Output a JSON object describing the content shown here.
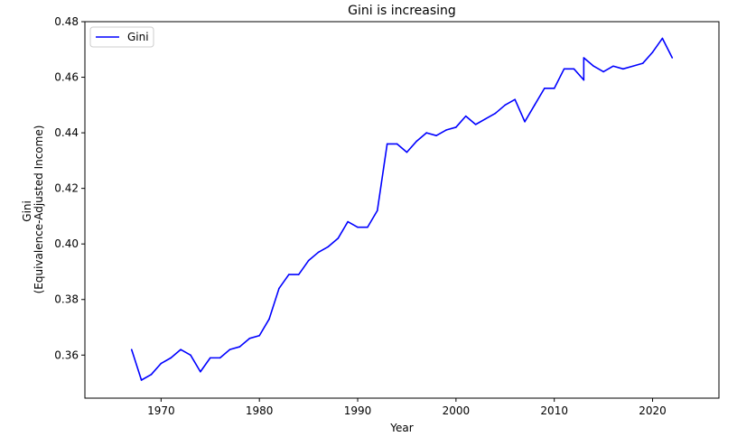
{
  "chart_data": {
    "type": "line",
    "title": "Gini is increasing",
    "xlabel": "Year",
    "ylabel_lines": [
      "Gini",
      "(Equivalence-Adjusted Income)"
    ],
    "xlim": [
      1962.25,
      2026.75
    ],
    "ylim": [
      0.3445,
      0.48
    ],
    "x_ticks": [
      1970,
      1980,
      1990,
      2000,
      2010,
      2020
    ],
    "y_ticks": [
      0.36,
      0.38,
      0.4,
      0.42,
      0.44,
      0.46,
      0.48
    ],
    "y_tick_labels": [
      "0.36",
      "0.38",
      "0.40",
      "0.42",
      "0.44",
      "0.46",
      "0.48"
    ],
    "grid": false,
    "legend_position": "upper left",
    "series": [
      {
        "name": "Gini",
        "color": "#0000ff",
        "points": [
          [
            1967,
            0.362
          ],
          [
            1968,
            0.351
          ],
          [
            1969,
            0.353
          ],
          [
            1970,
            0.357
          ],
          [
            1971,
            0.359
          ],
          [
            1972,
            0.362
          ],
          [
            1973,
            0.36
          ],
          [
            1974,
            0.354
          ],
          [
            1975,
            0.359
          ],
          [
            1976,
            0.359
          ],
          [
            1977,
            0.362
          ],
          [
            1978,
            0.363
          ],
          [
            1979,
            0.366
          ],
          [
            1980,
            0.367
          ],
          [
            1981,
            0.373
          ],
          [
            1982,
            0.384
          ],
          [
            1983,
            0.389
          ],
          [
            1984,
            0.389
          ],
          [
            1985,
            0.394
          ],
          [
            1986,
            0.397
          ],
          [
            1987,
            0.399
          ],
          [
            1988,
            0.402
          ],
          [
            1989,
            0.408
          ],
          [
            1990,
            0.406
          ],
          [
            1991,
            0.406
          ],
          [
            1992,
            0.412
          ],
          [
            1993,
            0.436
          ],
          [
            1994,
            0.436
          ],
          [
            1995,
            0.433
          ],
          [
            1996,
            0.437
          ],
          [
            1997,
            0.44
          ],
          [
            1998,
            0.439
          ],
          [
            1999,
            0.441
          ],
          [
            2000,
            0.442
          ],
          [
            2001,
            0.446
          ],
          [
            2002,
            0.443
          ],
          [
            2003,
            0.445
          ],
          [
            2004,
            0.447
          ],
          [
            2005,
            0.45
          ],
          [
            2006,
            0.452
          ],
          [
            2007,
            0.444
          ],
          [
            2008,
            0.45
          ],
          [
            2009,
            0.456
          ],
          [
            2010,
            0.456
          ],
          [
            2011,
            0.463
          ],
          [
            2012,
            0.463
          ],
          [
            2013,
            0.459
          ],
          [
            2013,
            0.467
          ],
          [
            2014,
            0.464
          ],
          [
            2015,
            0.462
          ],
          [
            2016,
            0.464
          ],
          [
            2017,
            0.463
          ],
          [
            2018,
            0.464
          ],
          [
            2019,
            0.465
          ],
          [
            2020,
            0.469
          ],
          [
            2021,
            0.474
          ],
          [
            2022,
            0.467
          ]
        ]
      }
    ]
  }
}
